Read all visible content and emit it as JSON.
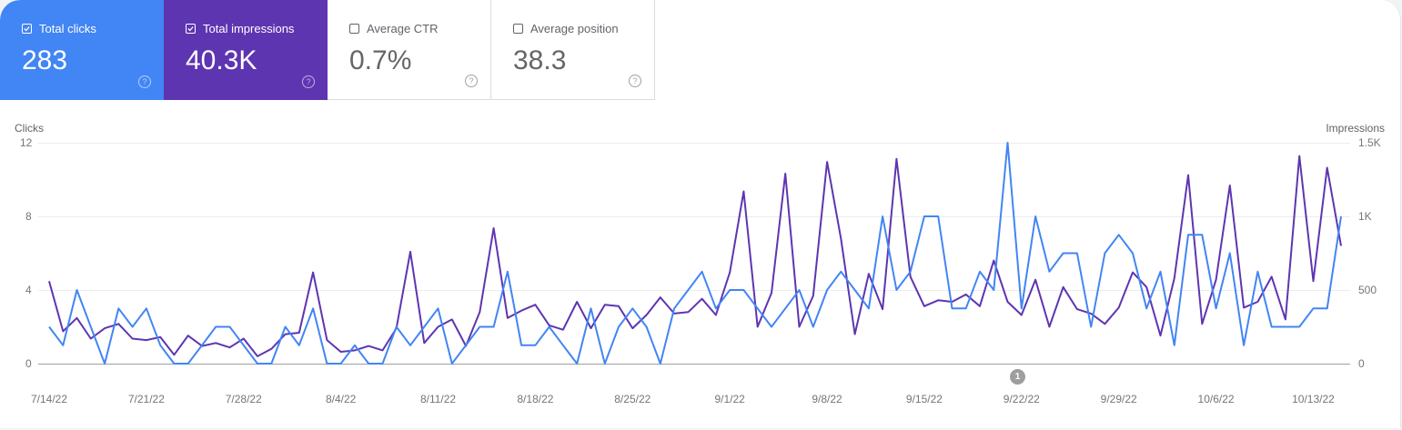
{
  "cards": [
    {
      "label": "Total clicks",
      "value": "283",
      "checked": true,
      "color": "#4285f4"
    },
    {
      "label": "Total impressions",
      "value": "40.3K",
      "checked": true,
      "color": "#5e35b1"
    },
    {
      "label": "Average CTR",
      "value": "0.7%",
      "checked": false
    },
    {
      "label": "Average position",
      "value": "38.3",
      "checked": false
    }
  ],
  "help_glyph": "?",
  "annotation": {
    "label": "1",
    "date": "9/22/22"
  },
  "chart_data": {
    "type": "line",
    "title": "",
    "left_axis": {
      "label": "Clicks",
      "ticks": [
        "0",
        "4",
        "8",
        "12"
      ],
      "range": [
        0,
        12
      ]
    },
    "right_axis": {
      "label": "Impressions",
      "ticks": [
        "0",
        "500",
        "1K",
        "1.5K"
      ],
      "range": [
        0,
        1500
      ]
    },
    "x_tick_labels": [
      "7/14/22",
      "7/21/22",
      "7/28/22",
      "8/4/22",
      "8/11/22",
      "8/18/22",
      "8/25/22",
      "9/1/22",
      "9/8/22",
      "9/15/22",
      "9/22/22",
      "9/29/22",
      "10/6/22",
      "10/13/22"
    ],
    "x_start": "7/14/22",
    "x_end": "10/14/22",
    "grid": true,
    "legend_position": "top (metric cards)",
    "series": [
      {
        "name": "Clicks",
        "axis": "left",
        "color": "#4285f4",
        "values": [
          2,
          1,
          4,
          2,
          0,
          3,
          2,
          3,
          1,
          0,
          0,
          1,
          2,
          2,
          1,
          0,
          0,
          2,
          1,
          3,
          0,
          0,
          1,
          0,
          0,
          2,
          1,
          2,
          3,
          0,
          1,
          2,
          2,
          5,
          1,
          1,
          2,
          1,
          0,
          3,
          0,
          2,
          3,
          2,
          0,
          3,
          4,
          5,
          3,
          4,
          4,
          3,
          2,
          3,
          4,
          2,
          4,
          5,
          4,
          3,
          8,
          4,
          5,
          8,
          8,
          3,
          3,
          5,
          4,
          12,
          3,
          8,
          5,
          6,
          6,
          2,
          6,
          7,
          6,
          3,
          5,
          1,
          7,
          7,
          3,
          6,
          1,
          5,
          2,
          2,
          2,
          3,
          3,
          8
        ]
      },
      {
        "name": "Impressions",
        "axis": "right",
        "color": "#5e35b1",
        "values": [
          560,
          220,
          310,
          170,
          240,
          270,
          170,
          160,
          180,
          60,
          190,
          120,
          140,
          110,
          170,
          50,
          100,
          200,
          210,
          620,
          160,
          80,
          90,
          120,
          90,
          240,
          760,
          140,
          250,
          300,
          120,
          350,
          920,
          310,
          360,
          400,
          260,
          230,
          420,
          240,
          400,
          390,
          240,
          330,
          450,
          340,
          350,
          440,
          330,
          620,
          1170,
          250,
          480,
          1290,
          250,
          460,
          1370,
          850,
          200,
          610,
          370,
          1390,
          590,
          390,
          430,
          420,
          470,
          390,
          700,
          420,
          330,
          570,
          250,
          520,
          370,
          340,
          270,
          380,
          620,
          520,
          190,
          580,
          1280,
          270,
          570,
          1210,
          380,
          420,
          590,
          300,
          1410,
          560,
          1330,
          800
        ]
      }
    ]
  }
}
